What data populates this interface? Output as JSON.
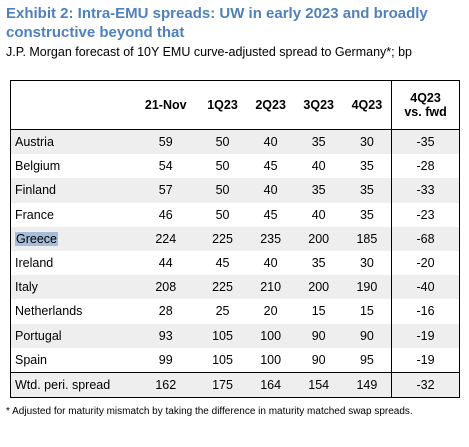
{
  "title": "Exhibit 2: Intra-EMU spreads: UW in early 2023 and broadly constructive beyond that",
  "subtitle": "J.P. Morgan forecast of 10Y EMU curve-adjusted spread to Germany*; bp",
  "table": {
    "headers": [
      "21-Nov",
      "1Q23",
      "2Q23",
      "3Q23",
      "4Q23"
    ],
    "last_header_line1": "4Q23",
    "last_header_line2": "vs. fwd",
    "rows": [
      {
        "country": "Austria",
        "values": [
          "59",
          "50",
          "40",
          "35",
          "30",
          "-35"
        ]
      },
      {
        "country": "Belgium",
        "values": [
          "54",
          "50",
          "45",
          "40",
          "35",
          "-28"
        ]
      },
      {
        "country": "Finland",
        "values": [
          "57",
          "50",
          "40",
          "35",
          "35",
          "-33"
        ]
      },
      {
        "country": "France",
        "values": [
          "46",
          "50",
          "45",
          "40",
          "35",
          "-23"
        ]
      },
      {
        "country": "Greece",
        "values": [
          "224",
          "225",
          "235",
          "200",
          "185",
          "-68"
        ]
      },
      {
        "country": "Ireland",
        "values": [
          "44",
          "45",
          "40",
          "35",
          "30",
          "-20"
        ]
      },
      {
        "country": "Italy",
        "values": [
          "208",
          "225",
          "210",
          "200",
          "190",
          "-40"
        ]
      },
      {
        "country": "Netherlands",
        "values": [
          "28",
          "25",
          "20",
          "15",
          "15",
          "-16"
        ]
      },
      {
        "country": "Portugal",
        "values": [
          "93",
          "105",
          "100",
          "90",
          "90",
          "-19"
        ]
      },
      {
        "country": "Spain",
        "values": [
          "99",
          "105",
          "100",
          "90",
          "95",
          "-19"
        ]
      }
    ],
    "total": {
      "country": "Wtd. peri. spread",
      "values": [
        "162",
        "175",
        "164",
        "154",
        "149",
        "-32"
      ]
    }
  },
  "footnote": "* Adjusted for maturity mismatch by taking the difference in maturity matched swap spreads.",
  "colors": {
    "title": "#4f81bd",
    "shade": "#eeeeee",
    "highlight": "#a6bcd8"
  }
}
